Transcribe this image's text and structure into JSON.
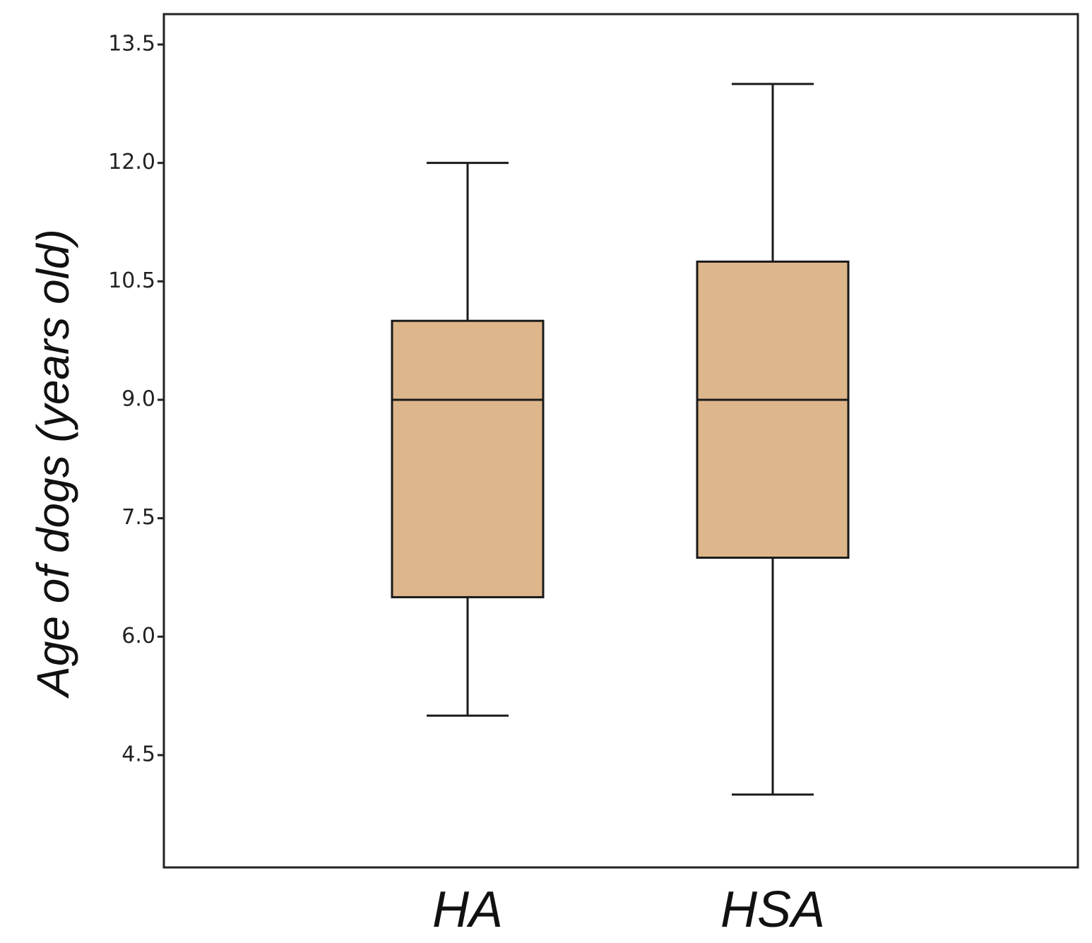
{
  "chart_data": {
    "type": "boxplot",
    "title": "",
    "xlabel": "",
    "ylabel": "Age of dogs (years old)",
    "ylim": [
      3.2,
      14.0
    ],
    "yticks": [
      "4.5",
      "6.0",
      "7.5",
      "9.0",
      "10.5",
      "12.0",
      "13.5"
    ],
    "grid": false,
    "legend": "none",
    "categories": [
      "HA",
      "HSA"
    ],
    "boxes": [
      {
        "category": "HA",
        "min": 5.0,
        "q1": 6.5,
        "median": 9.0,
        "q3": 10.0,
        "max": 12.0
      },
      {
        "category": "HSA",
        "min": 4.0,
        "q1": 7.0,
        "median": 9.0,
        "q3": 10.75,
        "max": 13.0
      }
    ],
    "colors": {
      "box_fill": "#deb68b",
      "stroke": "#1a1a1a"
    }
  }
}
